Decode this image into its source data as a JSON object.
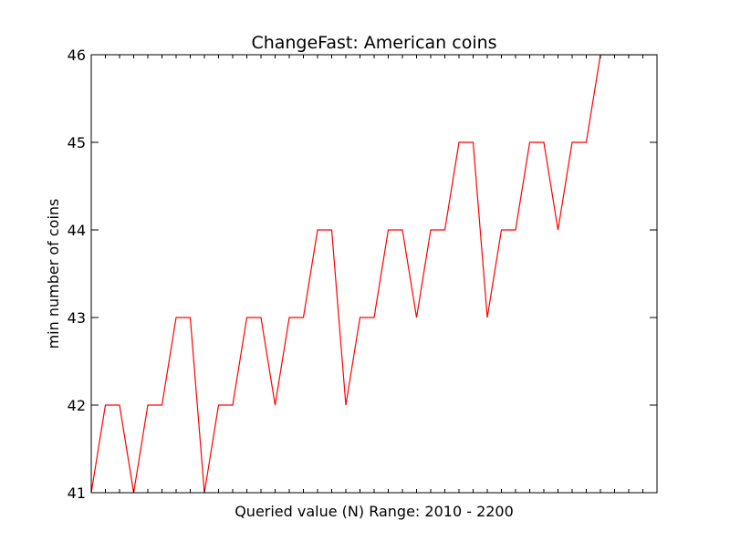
{
  "chart_data": {
    "type": "line",
    "title": "ChangeFast: American coins",
    "xlabel": "Queried value (N) Range:  2010 - 2200",
    "ylabel": "min number of coins",
    "xlim": [
      0,
      40
    ],
    "ylim": [
      41,
      46
    ],
    "yticks": [
      41,
      42,
      43,
      44,
      45,
      46
    ],
    "x_minor_tick_count": 41,
    "grid": false,
    "line_color": "#ff0000",
    "series": [
      {
        "values": [
          41,
          42,
          42,
          41,
          42,
          42,
          43,
          43,
          41,
          42,
          42,
          43,
          43,
          42,
          43,
          43,
          44,
          44,
          42,
          43,
          43,
          44,
          44,
          43,
          44,
          44,
          45,
          45,
          43,
          44,
          44,
          45,
          45,
          44,
          45,
          45,
          46,
          46,
          46,
          46,
          46
        ]
      }
    ]
  }
}
